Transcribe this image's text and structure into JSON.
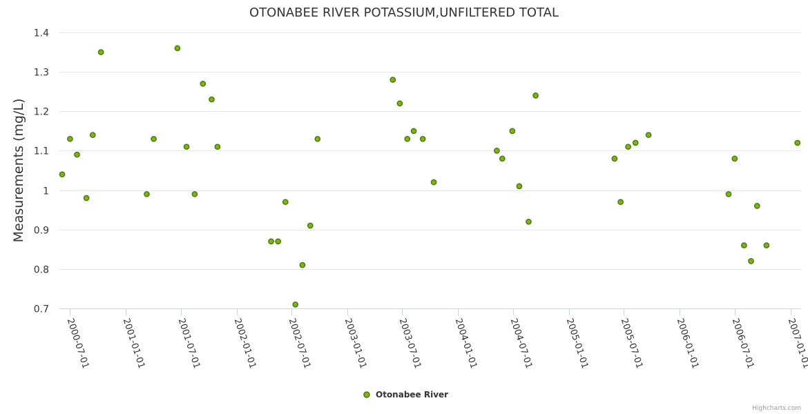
{
  "chart_data": {
    "type": "scatter",
    "title": "OTONABEE RIVER POTASSIUM,UNFILTERED TOTAL",
    "ylabel": "Measurements (mg/L)",
    "xlabel": "",
    "ylim": [
      0.7,
      1.4
    ],
    "yticks": [
      "0.7",
      "0.8",
      "0.9",
      "1",
      "1.1",
      "1.2",
      "1.3",
      "1.4"
    ],
    "xlim": [
      "2000-05-27",
      "2007-02-05"
    ],
    "xticks": [
      "2000-07-01",
      "2001-01-01",
      "2001-07-01",
      "2002-01-01",
      "2002-07-01",
      "2003-01-01",
      "2003-07-01",
      "2004-01-01",
      "2004-07-01",
      "2005-01-01",
      "2005-07-01",
      "2006-01-01",
      "2006-07-01",
      "2007-01-01"
    ],
    "grid": true,
    "legend_position": "bottom-center",
    "colors": {
      "marker_fill": "#7cb518",
      "marker_stroke": "#4d7a0a"
    },
    "series": [
      {
        "name": "Otonabee River",
        "points": [
          [
            "2000-06-05",
            1.04
          ],
          [
            "2000-07-01",
            1.13
          ],
          [
            "2000-07-24",
            1.09
          ],
          [
            "2000-08-24",
            0.98
          ],
          [
            "2000-09-14",
            1.14
          ],
          [
            "2000-10-11",
            1.35
          ],
          [
            "2001-03-11",
            0.99
          ],
          [
            "2001-04-03",
            1.13
          ],
          [
            "2001-06-20",
            1.36
          ],
          [
            "2001-07-20",
            1.11
          ],
          [
            "2001-08-16",
            0.99
          ],
          [
            "2001-09-12",
            1.27
          ],
          [
            "2001-10-11",
            1.23
          ],
          [
            "2001-10-30",
            1.11
          ],
          [
            "2002-04-25",
            0.87
          ],
          [
            "2002-05-18",
            0.87
          ],
          [
            "2002-06-11",
            0.97
          ],
          [
            "2002-07-14",
            0.71
          ],
          [
            "2002-08-06",
            0.81
          ],
          [
            "2002-09-01",
            0.91
          ],
          [
            "2002-09-25",
            1.13
          ],
          [
            "2003-05-31",
            1.28
          ],
          [
            "2003-06-23",
            1.22
          ],
          [
            "2003-07-18",
            1.13
          ],
          [
            "2003-08-08",
            1.15
          ],
          [
            "2003-09-07",
            1.13
          ],
          [
            "2003-10-13",
            1.02
          ],
          [
            "2004-05-08",
            1.1
          ],
          [
            "2004-05-26",
            1.08
          ],
          [
            "2004-06-28",
            1.15
          ],
          [
            "2004-07-21",
            1.01
          ],
          [
            "2004-08-21",
            0.92
          ],
          [
            "2004-09-13",
            1.24
          ],
          [
            "2005-05-31",
            1.08
          ],
          [
            "2005-06-20",
            0.97
          ],
          [
            "2005-07-15",
            1.11
          ],
          [
            "2005-08-08",
            1.12
          ],
          [
            "2005-09-20",
            1.14
          ],
          [
            "2006-06-11",
            0.99
          ],
          [
            "2006-07-01",
            1.08
          ],
          [
            "2006-08-01",
            0.86
          ],
          [
            "2006-08-24",
            0.82
          ],
          [
            "2006-09-13",
            0.96
          ],
          [
            "2006-10-14",
            0.86
          ],
          [
            "2007-01-24",
            1.12
          ]
        ]
      }
    ]
  },
  "credits": "Highcharts.com"
}
